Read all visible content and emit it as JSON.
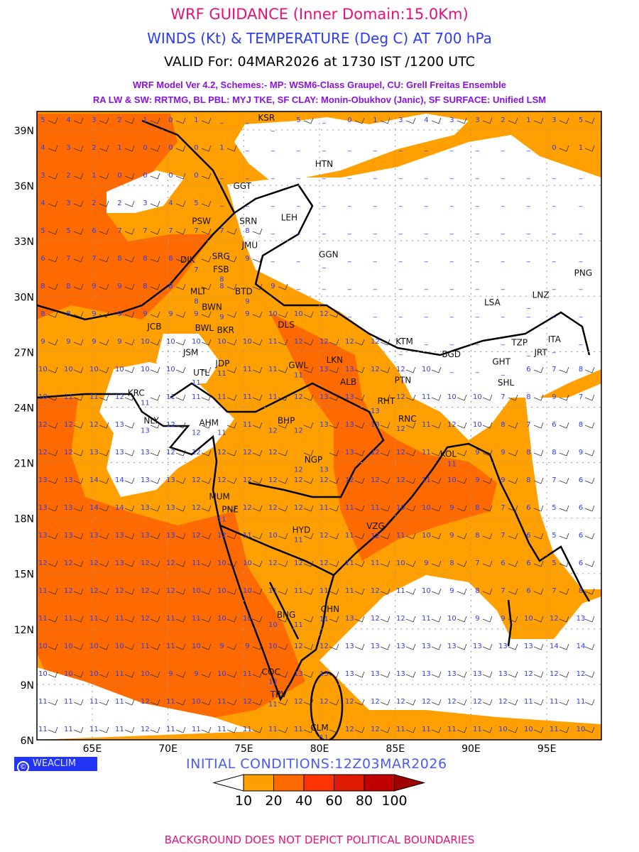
{
  "header": {
    "title": "WRF GUIDANCE (Inner Domain:15.0Km)",
    "subtitle": "WINDS (Kt) & TEMPERATURE (Deg C) AT 700 hPa",
    "valid": "VALID For: 04MAR2026 at 1730 IST /1200 UTC",
    "model_line1": "WRF Model Ver 4.2, Schemes:- MP: WSM6-Class Graupel, CU: Grell Freitas Ensemble",
    "model_line2": "RA LW & SW: RRTMG, BL PBL: MYJ TKE, SF CLAY: Monin-Obukhov (Janic), SF SURFACE: Unified LSM"
  },
  "map": {
    "lon_range": [
      61.35,
      98.6
    ],
    "lat_range": [
      6,
      40
    ],
    "lat_ticks": [
      {
        "v": 39,
        "label": "39N"
      },
      {
        "v": 36,
        "label": "36N"
      },
      {
        "v": 33,
        "label": "33N"
      },
      {
        "v": 30,
        "label": "30N"
      },
      {
        "v": 27,
        "label": "27N"
      },
      {
        "v": 24,
        "label": "24N"
      },
      {
        "v": 21,
        "label": "21N"
      },
      {
        "v": 18,
        "label": "18N"
      },
      {
        "v": 15,
        "label": "15N"
      },
      {
        "v": 12,
        "label": "12N"
      },
      {
        "v": 9,
        "label": "9N"
      },
      {
        "v": 6,
        "label": "6N"
      }
    ],
    "lon_ticks": [
      {
        "v": 65,
        "label": "65E"
      },
      {
        "v": 70,
        "label": "70E"
      },
      {
        "v": 75,
        "label": "75E"
      },
      {
        "v": 80,
        "label": "80E"
      },
      {
        "v": 85,
        "label": "85E"
      },
      {
        "v": 90,
        "label": "90E"
      },
      {
        "v": 95,
        "label": "95E"
      }
    ],
    "stations": [
      {
        "code": "KSR",
        "lon": 76.5,
        "lat": 39.7
      },
      {
        "code": "HTN",
        "lon": 80.3,
        "lat": 37.2
      },
      {
        "code": "GGT",
        "lon": 74.9,
        "lat": 36.0
      },
      {
        "code": "LEH",
        "lon": 78.0,
        "lat": 34.3
      },
      {
        "code": "PSW",
        "lon": 72.2,
        "lat": 34.1
      },
      {
        "code": "SRN",
        "lon": 75.3,
        "lat": 34.1
      },
      {
        "code": "JMU",
        "lon": 75.4,
        "lat": 32.8
      },
      {
        "code": "GGN",
        "lon": 80.6,
        "lat": 32.3
      },
      {
        "code": "DIK",
        "lon": 71.3,
        "lat": 32.0
      },
      {
        "code": "SRG",
        "lon": 73.5,
        "lat": 32.2
      },
      {
        "code": "FSB",
        "lon": 73.5,
        "lat": 31.5
      },
      {
        "code": "MLT",
        "lon": 72.0,
        "lat": 30.3
      },
      {
        "code": "BWN",
        "lon": 72.9,
        "lat": 30.0
      },
      {
        "code": "BTD",
        "lon": 75.0,
        "lat": 30.3
      },
      {
        "code": "BWL",
        "lon": 72.4,
        "lat": 29.4
      },
      {
        "code": "JCB",
        "lon": 69.1,
        "lat": 28.4
      },
      {
        "code": "BKR",
        "lon": 73.8,
        "lat": 28.2
      },
      {
        "code": "DLS",
        "lon": 77.8,
        "lat": 28.5
      },
      {
        "code": "KTM",
        "lon": 85.6,
        "lat": 27.6
      },
      {
        "code": "JSM",
        "lon": 71.5,
        "lat": 27.0
      },
      {
        "code": "JDP",
        "lon": 73.6,
        "lat": 26.4
      },
      {
        "code": "UTL",
        "lon": 72.2,
        "lat": 25.9
      },
      {
        "code": "GWL",
        "lon": 78.6,
        "lat": 26.3
      },
      {
        "code": "LKN",
        "lon": 81.0,
        "lat": 26.6
      },
      {
        "code": "ALB",
        "lon": 81.9,
        "lat": 25.4
      },
      {
        "code": "PTN",
        "lon": 85.5,
        "lat": 25.5
      },
      {
        "code": "RHT",
        "lon": 84.4,
        "lat": 24.9
      },
      {
        "code": "KRC",
        "lon": 67.9,
        "lat": 24.8
      },
      {
        "code": "NLY",
        "lon": 68.9,
        "lat": 23.3
      },
      {
        "code": "AHM",
        "lon": 72.7,
        "lat": 23.2
      },
      {
        "code": "BHP",
        "lon": 77.8,
        "lat": 23.3
      },
      {
        "code": "RNC",
        "lon": 85.8,
        "lat": 23.4
      },
      {
        "code": "KOL",
        "lon": 88.5,
        "lat": 21.5
      },
      {
        "code": "NGP",
        "lon": 79.6,
        "lat": 21.2
      },
      {
        "code": "MUM",
        "lon": 73.4,
        "lat": 19.2
      },
      {
        "code": "PNE",
        "lon": 74.1,
        "lat": 18.5
      },
      {
        "code": "HYD",
        "lon": 78.8,
        "lat": 17.4
      },
      {
        "code": "VZG",
        "lon": 83.7,
        "lat": 17.6
      },
      {
        "code": "CHN",
        "lon": 80.7,
        "lat": 13.1
      },
      {
        "code": "BNG",
        "lon": 77.8,
        "lat": 12.8
      },
      {
        "code": "COC",
        "lon": 76.8,
        "lat": 9.7
      },
      {
        "code": "TRV",
        "lon": 77.3,
        "lat": 8.5
      },
      {
        "code": "CLM",
        "lon": 80.0,
        "lat": 6.7
      },
      {
        "code": "LSA",
        "lon": 91.4,
        "lat": 29.7
      },
      {
        "code": "LNZ",
        "lon": 94.6,
        "lat": 30.1
      },
      {
        "code": "PNG",
        "lon": 97.4,
        "lat": 31.3
      },
      {
        "code": "BGD",
        "lon": 88.7,
        "lat": 26.9
      },
      {
        "code": "GHT",
        "lon": 92.0,
        "lat": 26.5
      },
      {
        "code": "SHL",
        "lon": 92.3,
        "lat": 25.9
      },
      {
        "code": "TZP",
        "lon": 93.2,
        "lat": 27.0
      },
      {
        "code": "JRT",
        "lon": 94.6,
        "lat": 27.0
      },
      {
        "code": "ITA",
        "lon": 95.5,
        "lat": 27.7
      }
    ],
    "temperature_rows": [
      "5 4 3 2 1 0 1 _ _ _ 5 _ 0 1 3 4 3 3 2 1 3 5",
      "4 3 2 1 0 0 0 1 _ _ _ _ _ _ _ _ _ _ _ _ 0 1",
      "3 2 1 0 0 0 0 _ _ _ _ _ _ _ _ _ _ _ _ _ _ _",
      "4 3 2 2 3 4 5 _ _ _ _ _ _ _ _ _ _ _ _ _ _ _",
      "5 5 6 7 7 7 7 7 8 _ _ _ _ _ _ _ _ _ _ _ _ _",
      "6 7 7 8 8 8 7 8 9 _ _ _ _ _ _ _ _ _ _ _ _ _",
      "8 8 9 9 8 8 8 8 9 9 _ _ _ _ _ _ _ _ _ _ _ _",
      "8 8 9 9 9 9 9 9 9 10 10 12 _ _ _ _ _ _ _ _ _ _",
      "9 9 9 9 10 10 10 10 10 11 12 12 12 12 _ _ _ _ _ _ _ _",
      "10 10 10 10 10 10 11 11 11 11 11 13 13 12 12 10 _ _ _ 6 7 8",
      "10 11 11 12 11 11 11 11 11 11 12 13 13 13 12 11 10 10 7 8 9 7",
      "12 12 12 13 13 12 12 11 11 12 12 13 13 13 12 11 12 10 8 7 6 8",
      "12 12 13 13 13 12 12 12 12 12 12 13 13 12 12 11 11 9 9 8 8 9",
      "13 13 14 14 13 13 12 12 12 12 12 12 12 12 12 11 10 9 9 8 7 6",
      "13 13 14 14 13 13 12 11 12 12 12 11 11 11 10 10 9 8 7 6 5 6",
      "13 13 13 13 13 13 12 12 11 10 11 12 11 12 11 10 9 8 7 6 5 6",
      "12 12 12 13 12 12 11 10 10 12 12 12 11 11 10 9 8 7 6 6 5 6",
      "11 12 12 12 12 12 10 10 10 11 11 11 11 12 11 10 9 8 7 6 7 8",
      "11 11 11 11 12 11 11 10 10 10 11 11 13 12 12 11 10 9 9 10 12 13",
      "10 10 10 10 11 11 10 9 9 10 12 12 13 13 13 13 13 13 13 13 14 14",
      "10 10 10 11 10 9 9 10 11 12 13 13 13 13 13 13 13 13 13 12 12 12",
      "11 11 11 11 12 11 10 11 12 11 12 12 12 12 12 12 12 12 12 11 11 11",
      "11 11 11 11 12 11 11 11 11 11 11 11 12 12 11 11 11 11 10 10 11 10"
    ]
  },
  "logo": {
    "symbol": "©",
    "text": "WEACLIM"
  },
  "initial_conditions": "INITIAL CONDITIONS:12Z03MAR2026",
  "colorbar": {
    "labels": [
      "10",
      "20",
      "40",
      "60",
      "80",
      "100"
    ],
    "colors": [
      "#ffffff",
      "#ffa000",
      "#ff6a00",
      "#ff3300",
      "#e01a00",
      "#c00000",
      "#a00000"
    ]
  },
  "colors": {
    "orange_light": "#ffa000",
    "orange_dark": "#ff6a00",
    "temp_text": "#2d3cf5"
  },
  "footer": "BACKGROUND DOES NOT DEPICT POLITICAL BOUNDARIES"
}
